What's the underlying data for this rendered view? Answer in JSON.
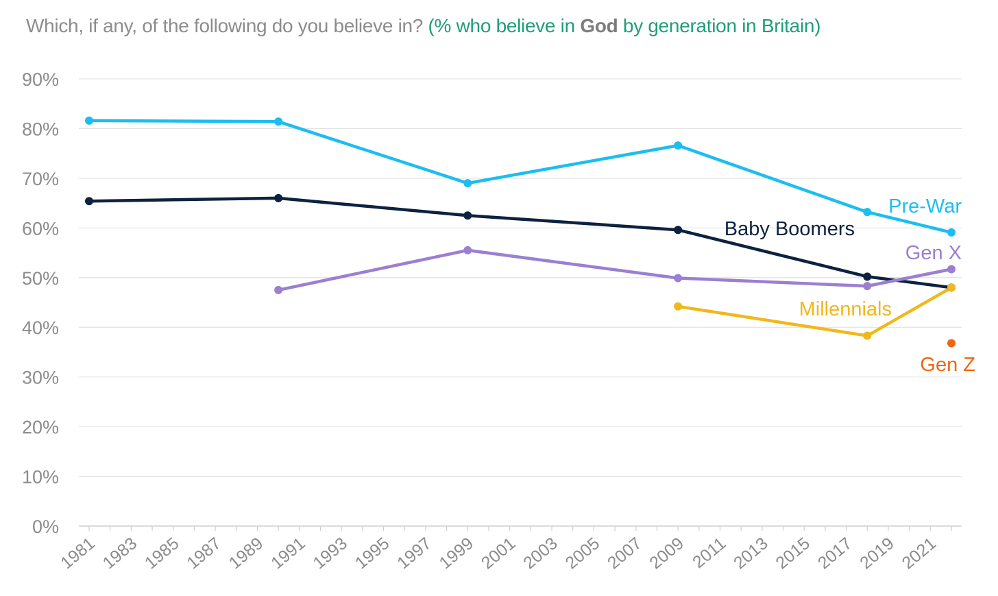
{
  "title": {
    "lead": "Which, if any, of the following do you believe in? ",
    "accent_before": "(% who believe in ",
    "accent_bold": "God",
    "accent_after": " by generation in Britain)"
  },
  "chart_data": {
    "type": "line",
    "xlabel": "",
    "ylabel": "",
    "ylim": [
      0,
      90
    ],
    "xlim": [
      1981,
      2022
    ],
    "y_ticks": [
      "0%",
      "10%",
      "20%",
      "30%",
      "40%",
      "50%",
      "60%",
      "70%",
      "80%",
      "90%"
    ],
    "x_ticks": [
      "1981",
      "1983",
      "1985",
      "1987",
      "1989",
      "1991",
      "1993",
      "1995",
      "1997",
      "1999",
      "2001",
      "2003",
      "2005",
      "2007",
      "2009",
      "2011",
      "2013",
      "2015",
      "2017",
      "2019",
      "2021"
    ],
    "grid": true,
    "legend": "inline labels",
    "series": [
      {
        "name": "Pre-War",
        "color": "#1ebdf0",
        "x": [
          1981,
          1990,
          1999,
          2009,
          2018,
          2022
        ],
        "y": [
          81.6,
          81.4,
          69.0,
          76.6,
          63.2,
          59.1
        ]
      },
      {
        "name": "Baby Boomers",
        "color": "#0d2240",
        "x": [
          1981,
          1990,
          1999,
          2009,
          2018,
          2022
        ],
        "y": [
          65.4,
          66.0,
          62.5,
          59.6,
          50.2,
          48.0
        ]
      },
      {
        "name": "Gen X",
        "color": "#9b7fd1",
        "x": [
          1990,
          1999,
          2009,
          2018,
          2022
        ],
        "y": [
          47.5,
          55.5,
          49.9,
          48.3,
          51.7
        ]
      },
      {
        "name": "Millennials",
        "color": "#f1b81c",
        "x": [
          2009,
          2018,
          2022
        ],
        "y": [
          44.2,
          38.3,
          48.0
        ]
      },
      {
        "name": "Gen Z",
        "color": "#f2640f",
        "x": [
          2022
        ],
        "y": [
          36.8
        ]
      }
    ]
  }
}
